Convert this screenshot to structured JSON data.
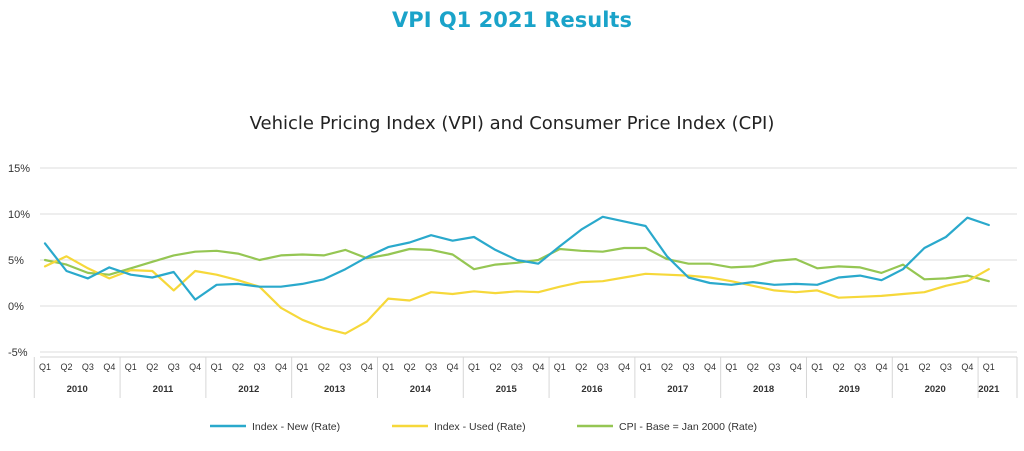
{
  "page": {
    "title": "VPI Q1 2021 Results"
  },
  "colors": {
    "title": "#1aa3c9",
    "new": "#2aa9cc",
    "used": "#f6d83a",
    "cpi": "#95c653"
  },
  "chart_data": {
    "type": "line",
    "title": "Vehicle Pricing Index (VPI) and Consumer Price Index (CPI)",
    "xlabel": "",
    "ylabel": "",
    "ylim": [
      -5,
      15
    ],
    "yticks": [
      15,
      10,
      5,
      0,
      -5
    ],
    "ytick_labels": [
      "15%",
      "10%",
      "5%",
      "0%",
      "-5%"
    ],
    "grid": "horizontal",
    "legend_position": "bottom",
    "quarters": [
      "Q1",
      "Q2",
      "Q3",
      "Q4",
      "Q1",
      "Q2",
      "Q3",
      "Q4",
      "Q1",
      "Q2",
      "Q3",
      "Q4",
      "Q1",
      "Q2",
      "Q3",
      "Q4",
      "Q1",
      "Q2",
      "Q3",
      "Q4",
      "Q1",
      "Q2",
      "Q3",
      "Q4",
      "Q1",
      "Q2",
      "Q3",
      "Q4",
      "Q1",
      "Q2",
      "Q3",
      "Q4",
      "Q1",
      "Q2",
      "Q3",
      "Q4",
      "Q1",
      "Q2",
      "Q3",
      "Q4",
      "Q1",
      "Q2",
      "Q3",
      "Q4",
      "Q1"
    ],
    "years": [
      "2010",
      "2011",
      "2012",
      "2013",
      "2014",
      "2015",
      "2016",
      "2017",
      "2018",
      "2019",
      "2020",
      "2021"
    ],
    "series": [
      {
        "name": "Index - New (Rate)",
        "color": "#2aa9cc",
        "values": [
          6.8,
          3.8,
          3.0,
          4.2,
          3.4,
          3.1,
          3.7,
          0.7,
          2.3,
          2.4,
          2.1,
          2.1,
          2.4,
          2.9,
          4.0,
          5.3,
          6.4,
          6.9,
          7.7,
          7.1,
          7.5,
          6.1,
          5.0,
          4.6,
          6.5,
          8.3,
          9.7,
          9.2,
          8.7,
          5.4,
          3.1,
          2.5,
          2.3,
          2.6,
          2.3,
          2.4,
          2.3,
          3.1,
          3.3,
          2.8,
          4.0,
          6.3,
          7.5,
          9.6,
          8.8
        ]
      },
      {
        "name": "Index - Used (Rate)",
        "color": "#f6d83a",
        "values": [
          4.3,
          5.4,
          4.1,
          3.0,
          3.9,
          3.8,
          1.7,
          3.8,
          3.4,
          2.8,
          2.1,
          -0.2,
          -1.5,
          -2.4,
          -3.0,
          -1.7,
          0.8,
          0.6,
          1.5,
          1.3,
          1.6,
          1.4,
          1.6,
          1.5,
          2.1,
          2.6,
          2.7,
          3.1,
          3.5,
          3.4,
          3.3,
          3.1,
          2.7,
          2.2,
          1.7,
          1.5,
          1.7,
          0.9,
          1.0,
          1.1,
          1.3,
          1.5,
          2.2,
          2.7,
          4.0
        ]
      },
      {
        "name": "CPI - Base = Jan 2000 (Rate)",
        "color": "#95c653",
        "values": [
          5.0,
          4.5,
          3.6,
          3.4,
          4.1,
          4.8,
          5.5,
          5.9,
          6.0,
          5.7,
          5.0,
          5.5,
          5.6,
          5.5,
          6.1,
          5.2,
          5.6,
          6.2,
          6.1,
          5.6,
          4.0,
          4.5,
          4.7,
          5.0,
          6.2,
          6.0,
          5.9,
          6.3,
          6.3,
          5.1,
          4.6,
          4.6,
          4.2,
          4.3,
          4.9,
          5.1,
          4.1,
          4.3,
          4.2,
          3.6,
          4.5,
          2.9,
          3.0,
          3.3,
          2.7
        ]
      }
    ]
  }
}
